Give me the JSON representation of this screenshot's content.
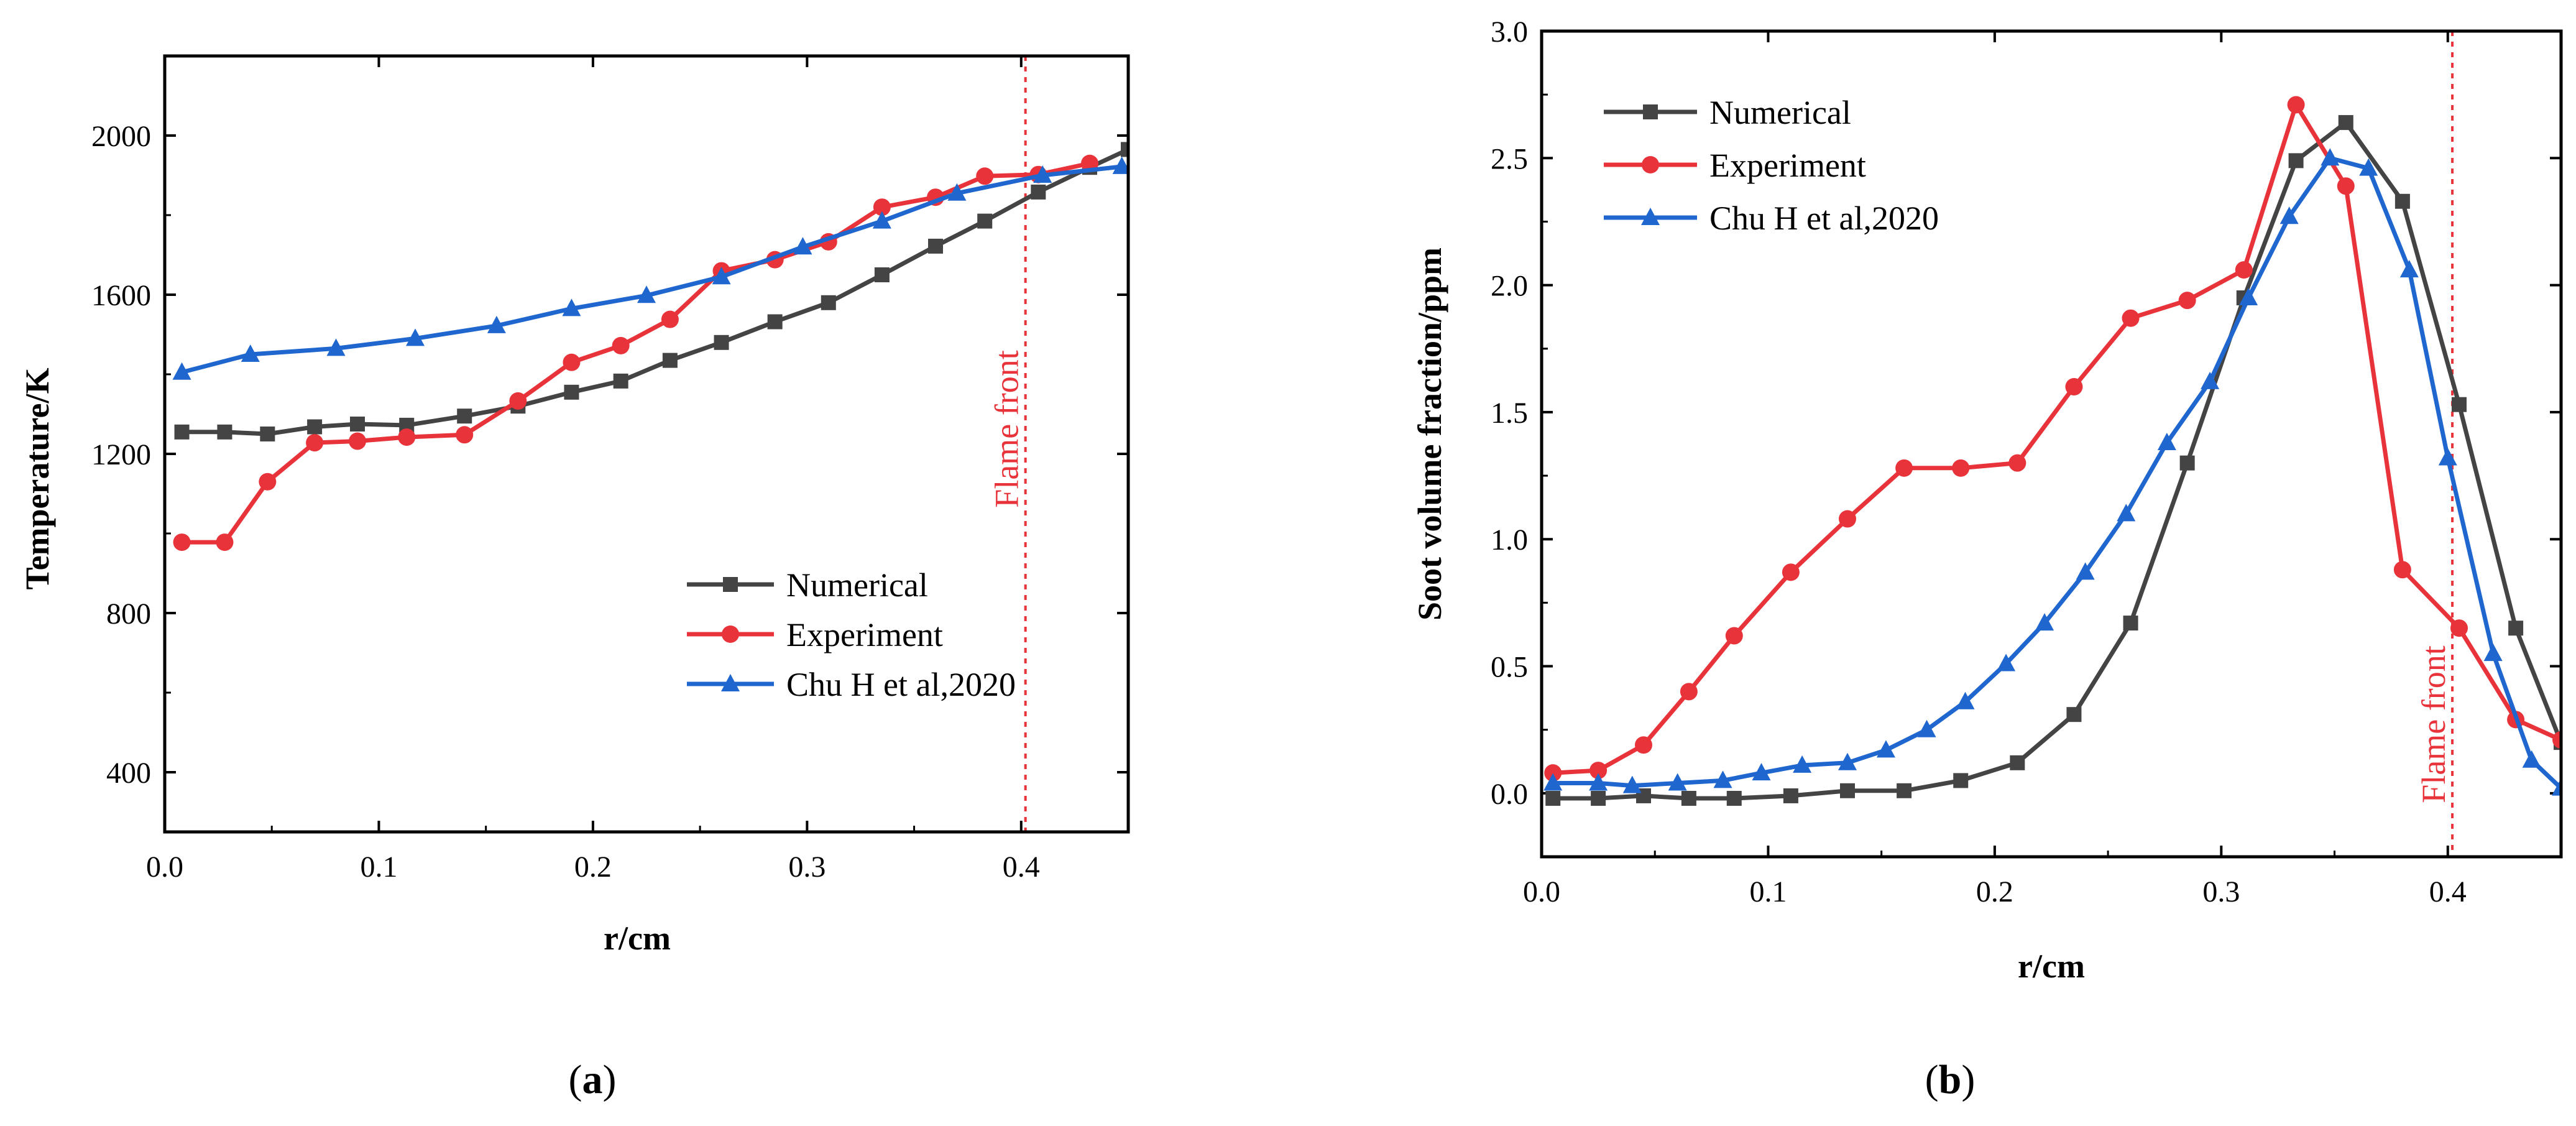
{
  "chart_data": [
    {
      "id": "a",
      "type": "line",
      "panel_label": "a",
      "xlabel": "r/cm",
      "ylabel": "Temperature/K",
      "xlim": [
        0.0,
        0.45
      ],
      "ylim": [
        250,
        2200
      ],
      "xticks": [
        0.0,
        0.1,
        0.2,
        0.3,
        0.4
      ],
      "xtick_labels": [
        "0.0",
        "0.1",
        "0.2",
        "0.3",
        "0.4"
      ],
      "yticks": [
        400,
        800,
        1200,
        1600,
        2000
      ],
      "ytick_labels": [
        "400",
        "800",
        "1200",
        "1600",
        "2000"
      ],
      "legend_position": "bottom-right",
      "annotation": {
        "text": "Flame front",
        "x": 0.402,
        "color": "#e8333a"
      },
      "series": [
        {
          "name": "Numerical",
          "color": "#444444",
          "marker": "square",
          "x": [
            0.008,
            0.028,
            0.048,
            0.07,
            0.09,
            0.113,
            0.14,
            0.165,
            0.19,
            0.213,
            0.236,
            0.26,
            0.285,
            0.31,
            0.335,
            0.36,
            0.383,
            0.408,
            0.432,
            0.45
          ],
          "y": [
            1255,
            1255,
            1250,
            1268,
            1275,
            1272,
            1295,
            1320,
            1355,
            1383,
            1435,
            1480,
            1532,
            1580,
            1650,
            1722,
            1785,
            1858,
            1920,
            1965
          ]
        },
        {
          "name": "Experiment",
          "color": "#e8333a",
          "marker": "circle",
          "x": [
            0.008,
            0.028,
            0.048,
            0.07,
            0.09,
            0.113,
            0.14,
            0.165,
            0.19,
            0.213,
            0.236,
            0.26,
            0.285,
            0.31,
            0.335,
            0.36,
            0.383,
            0.408,
            0.432
          ],
          "y": [
            978,
            978,
            1130,
            1228,
            1232,
            1242,
            1248,
            1333,
            1430,
            1472,
            1538,
            1660,
            1688,
            1733,
            1820,
            1845,
            1898,
            1902,
            1930
          ]
        },
        {
          "name": "Chu H et al,2020",
          "color": "#1f66cf",
          "marker": "triangle",
          "x": [
            0.008,
            0.04,
            0.08,
            0.117,
            0.155,
            0.19,
            0.225,
            0.26,
            0.298,
            0.335,
            0.37,
            0.41,
            0.447
          ],
          "y": [
            1405,
            1450,
            1465,
            1490,
            1522,
            1565,
            1598,
            1645,
            1720,
            1785,
            1855,
            1900,
            1922
          ]
        }
      ]
    },
    {
      "id": "b",
      "type": "line",
      "panel_label": "b",
      "xlabel": "r/cm",
      "ylabel": "Soot volume fraction/ppm",
      "xlim": [
        0.0,
        0.45
      ],
      "ylim": [
        -0.25,
        3.0
      ],
      "xticks": [
        0.0,
        0.1,
        0.2,
        0.3,
        0.4
      ],
      "xtick_labels": [
        "0.0",
        "0.1",
        "0.2",
        "0.3",
        "0.4"
      ],
      "yticks": [
        0.0,
        0.5,
        1.0,
        1.5,
        2.0,
        2.5,
        3.0
      ],
      "ytick_labels": [
        "0.0",
        "0.5",
        "1.0",
        "1.5",
        "2.0",
        "2.5",
        "3.0"
      ],
      "legend_position": "top-left",
      "annotation": {
        "text": "Flame front",
        "x": 0.402,
        "color": "#e8333a"
      },
      "series": [
        {
          "name": "Numerical",
          "color": "#444444",
          "marker": "square",
          "x": [
            0.005,
            0.025,
            0.045,
            0.065,
            0.085,
            0.11,
            0.135,
            0.16,
            0.185,
            0.21,
            0.235,
            0.26,
            0.285,
            0.31,
            0.333,
            0.355,
            0.38,
            0.405,
            0.43,
            0.45
          ],
          "y": [
            -0.02,
            -0.02,
            -0.01,
            -0.02,
            -0.02,
            -0.01,
            0.01,
            0.01,
            0.05,
            0.12,
            0.31,
            0.67,
            1.3,
            1.95,
            2.49,
            2.64,
            2.33,
            1.53,
            0.65,
            0.2
          ]
        },
        {
          "name": "Experiment",
          "color": "#e8333a",
          "marker": "circle",
          "x": [
            0.005,
            0.025,
            0.045,
            0.065,
            0.085,
            0.11,
            0.135,
            0.16,
            0.185,
            0.21,
            0.235,
            0.26,
            0.285,
            0.31,
            0.333,
            0.355,
            0.38,
            0.405,
            0.43,
            0.45
          ],
          "y": [
            0.08,
            0.09,
            0.19,
            0.4,
            0.62,
            0.87,
            1.08,
            1.28,
            1.28,
            1.3,
            1.6,
            1.87,
            1.94,
            2.06,
            2.71,
            2.39,
            0.88,
            0.65,
            0.29,
            0.21
          ]
        },
        {
          "name": "Chu H et al,2020",
          "color": "#1f66cf",
          "marker": "triangle",
          "x": [
            0.005,
            0.025,
            0.04,
            0.06,
            0.08,
            0.097,
            0.115,
            0.135,
            0.152,
            0.17,
            0.187,
            0.205,
            0.222,
            0.24,
            0.258,
            0.276,
            0.295,
            0.312,
            0.33,
            0.348,
            0.365,
            0.383,
            0.4,
            0.42,
            0.437,
            0.45
          ],
          "y": [
            0.04,
            0.04,
            0.03,
            0.04,
            0.05,
            0.08,
            0.11,
            0.12,
            0.17,
            0.25,
            0.36,
            0.51,
            0.67,
            0.87,
            1.1,
            1.38,
            1.62,
            1.95,
            2.27,
            2.5,
            2.46,
            2.06,
            1.32,
            0.55,
            0.13,
            0.02
          ]
        }
      ]
    }
  ]
}
